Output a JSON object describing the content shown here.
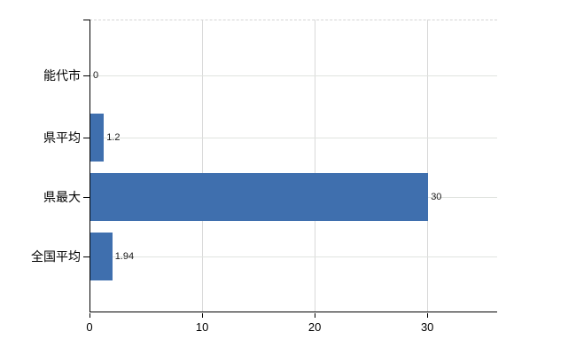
{
  "chart_data": {
    "type": "bar",
    "orientation": "horizontal",
    "title": "",
    "xlabel": "",
    "ylabel": "",
    "categories": [
      "能代市",
      "県平均",
      "県最大",
      "全国平均"
    ],
    "values": [
      0,
      1.2,
      30,
      1.94
    ],
    "data_labels": [
      "0",
      "1.2",
      "30",
      "1.94"
    ],
    "xlim": [
      0,
      36.2
    ],
    "xticks": [
      0,
      10,
      20,
      30
    ],
    "xtick_labels": [
      "0",
      "10",
      "20",
      "30"
    ],
    "grid": true,
    "legend": false,
    "colors": {
      "bar": "#3f6fae",
      "hgrid": "#e0e3df",
      "vgrid": "#d9d9d9",
      "axis": "#000000",
      "text": "#000000"
    }
  }
}
